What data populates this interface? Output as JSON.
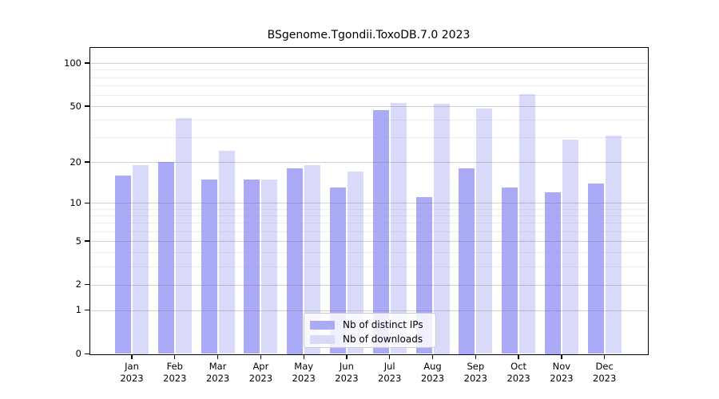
{
  "title": "BSgenome.Tgondii.ToxoDB.7.0 2023",
  "chart_data": {
    "type": "bar",
    "title": "BSgenome.Tgondii.ToxoDB.7.0 2023",
    "x_categories": [
      {
        "month": "Jan",
        "year": "2023"
      },
      {
        "month": "Feb",
        "year": "2023"
      },
      {
        "month": "Mar",
        "year": "2023"
      },
      {
        "month": "Apr",
        "year": "2023"
      },
      {
        "month": "May",
        "year": "2023"
      },
      {
        "month": "Jun",
        "year": "2023"
      },
      {
        "month": "Jul",
        "year": "2023"
      },
      {
        "month": "Aug",
        "year": "2023"
      },
      {
        "month": "Sep",
        "year": "2023"
      },
      {
        "month": "Oct",
        "year": "2023"
      },
      {
        "month": "Nov",
        "year": "2023"
      },
      {
        "month": "Dec",
        "year": "2023"
      }
    ],
    "series": [
      {
        "name": "Nb of distinct IPs",
        "key": "distinct-ips",
        "color": "#aaaaf7",
        "values": [
          16,
          20,
          15,
          15,
          18,
          13,
          47,
          11,
          18,
          13,
          12,
          14
        ]
      },
      {
        "name": "Nb of downloads",
        "key": "downloads",
        "color": "#d9d9f9",
        "values": [
          19,
          41,
          24,
          15,
          19,
          17,
          53,
          52,
          48,
          61,
          29,
          31
        ]
      }
    ],
    "y_axis": {
      "scale": "log1p",
      "tick_labels": [
        0,
        1,
        2,
        5,
        10,
        20,
        50,
        100
      ],
      "minor_gridlines": [
        3,
        4,
        6,
        7,
        8,
        9,
        30,
        40,
        60,
        70,
        80,
        90
      ],
      "ylim": [
        0,
        128
      ]
    },
    "legend": {
      "position": "lower-center"
    },
    "grid": true
  },
  "colors": {
    "bar_distinct_ips": "#aaaaf7",
    "bar_downloads": "#d9d9f9",
    "grid_major": "#d6d6d6",
    "grid_minor": "#eaeaea",
    "axis": "#000000",
    "legend_border": "#cccccc"
  }
}
